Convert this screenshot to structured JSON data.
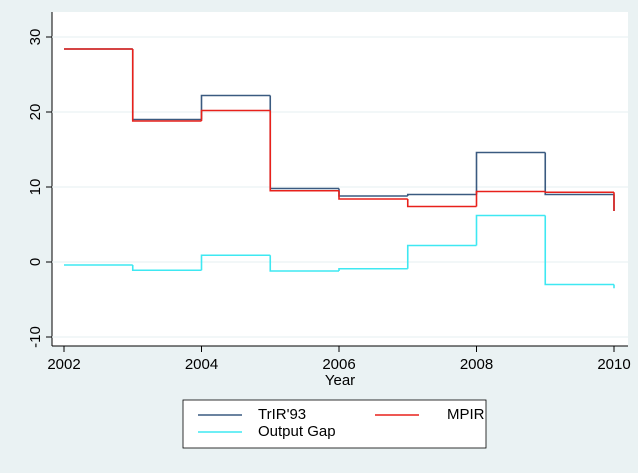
{
  "chart_data": {
    "type": "step",
    "x_label": "Year",
    "x": [
      2002,
      2003,
      2004,
      2005,
      2006,
      2007,
      2008,
      2009,
      2010
    ],
    "series": [
      {
        "name": "TrIR'93",
        "color": "#3a5a80",
        "values": [
          28.4,
          19.0,
          22.2,
          9.8,
          8.8,
          9.0,
          14.6,
          9.0,
          6.8
        ]
      },
      {
        "name": "MPIR",
        "color": "#e8211b",
        "values": [
          28.4,
          18.8,
          20.2,
          9.5,
          8.4,
          7.4,
          9.4,
          9.3,
          6.8
        ]
      },
      {
        "name": "Output Gap",
        "color": "#3ee8f2",
        "values": [
          -0.4,
          -1.1,
          0.9,
          -1.2,
          -0.9,
          2.2,
          6.2,
          -3.0,
          -3.5
        ]
      }
    ],
    "xlim": [
      2002,
      2010
    ],
    "xticks": [
      2002,
      2004,
      2006,
      2008,
      2010
    ],
    "ylim": [
      -10,
      30
    ],
    "yticks": [
      -10,
      0,
      10,
      20,
      30
    ],
    "grid": true,
    "legend": "bottom"
  }
}
